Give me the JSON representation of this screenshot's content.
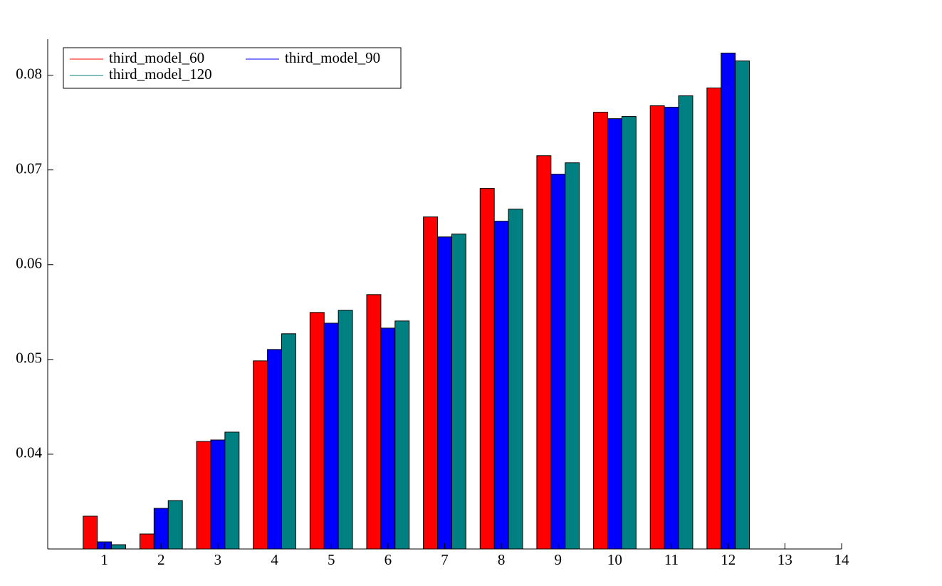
{
  "chart_data": {
    "type": "bar",
    "x": [
      1,
      2,
      3,
      4,
      5,
      6,
      7,
      8,
      9,
      10,
      11,
      12
    ],
    "series": [
      {
        "name": "third_model_60",
        "color": "#ff0000",
        "values": [
          0.03346,
          0.03158,
          0.04135,
          0.04985,
          0.05496,
          0.05684,
          0.06504,
          0.06805,
          0.0715,
          0.07609,
          0.07677,
          0.07865
        ]
      },
      {
        "name": "third_model_90",
        "color": "#0000ff",
        "values": [
          0.03075,
          0.03429,
          0.0415,
          0.05105,
          0.05383,
          0.05331,
          0.06293,
          0.06459,
          0.06955,
          0.07541,
          0.07662,
          0.08233
        ]
      },
      {
        "name": "third_model_120",
        "color": "#008080",
        "values": [
          0.03045,
          0.03511,
          0.04233,
          0.05271,
          0.05519,
          0.05406,
          0.06323,
          0.06586,
          0.07075,
          0.07564,
          0.07782,
          0.0815
        ]
      }
    ],
    "xlim": [
      0,
      14
    ],
    "xticks": [
      1,
      2,
      3,
      4,
      5,
      6,
      7,
      8,
      9,
      10,
      11,
      12,
      13,
      14
    ],
    "ylim": [
      0.03,
      0.0838
    ],
    "yticks": [
      0.04,
      0.05,
      0.06,
      0.07,
      0.08
    ],
    "grid": false,
    "legend": "upper left"
  }
}
